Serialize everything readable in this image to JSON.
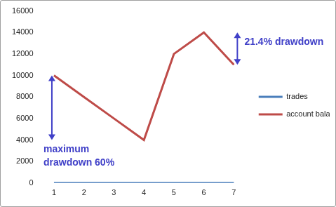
{
  "chart_data": {
    "type": "line",
    "categories": [
      "1",
      "2",
      "3",
      "4",
      "5",
      "6",
      "7"
    ],
    "series": [
      {
        "name": "trades",
        "color": "#4a7ebb",
        "values": [
          0,
          0,
          0,
          0,
          0,
          0,
          0
        ]
      },
      {
        "name": "account balance",
        "color": "#be4b48",
        "values": [
          10000,
          8000,
          6000,
          4000,
          12000,
          14000,
          11000
        ]
      }
    ],
    "ylim": [
      0,
      16000
    ],
    "yticks": [
      0,
      2000,
      4000,
      6000,
      8000,
      10000,
      12000,
      14000,
      16000
    ],
    "grid": false,
    "legend": "right",
    "annotations": [
      {
        "text": [
          "maximum",
          "drawdown 60%"
        ],
        "x": "1",
        "from": 10000,
        "to": 4000,
        "color": "#4040c8"
      },
      {
        "text": [
          "21.4% drawdown"
        ],
        "x": "7",
        "from": 14000,
        "to": 11000,
        "color": "#4040c8"
      }
    ]
  }
}
